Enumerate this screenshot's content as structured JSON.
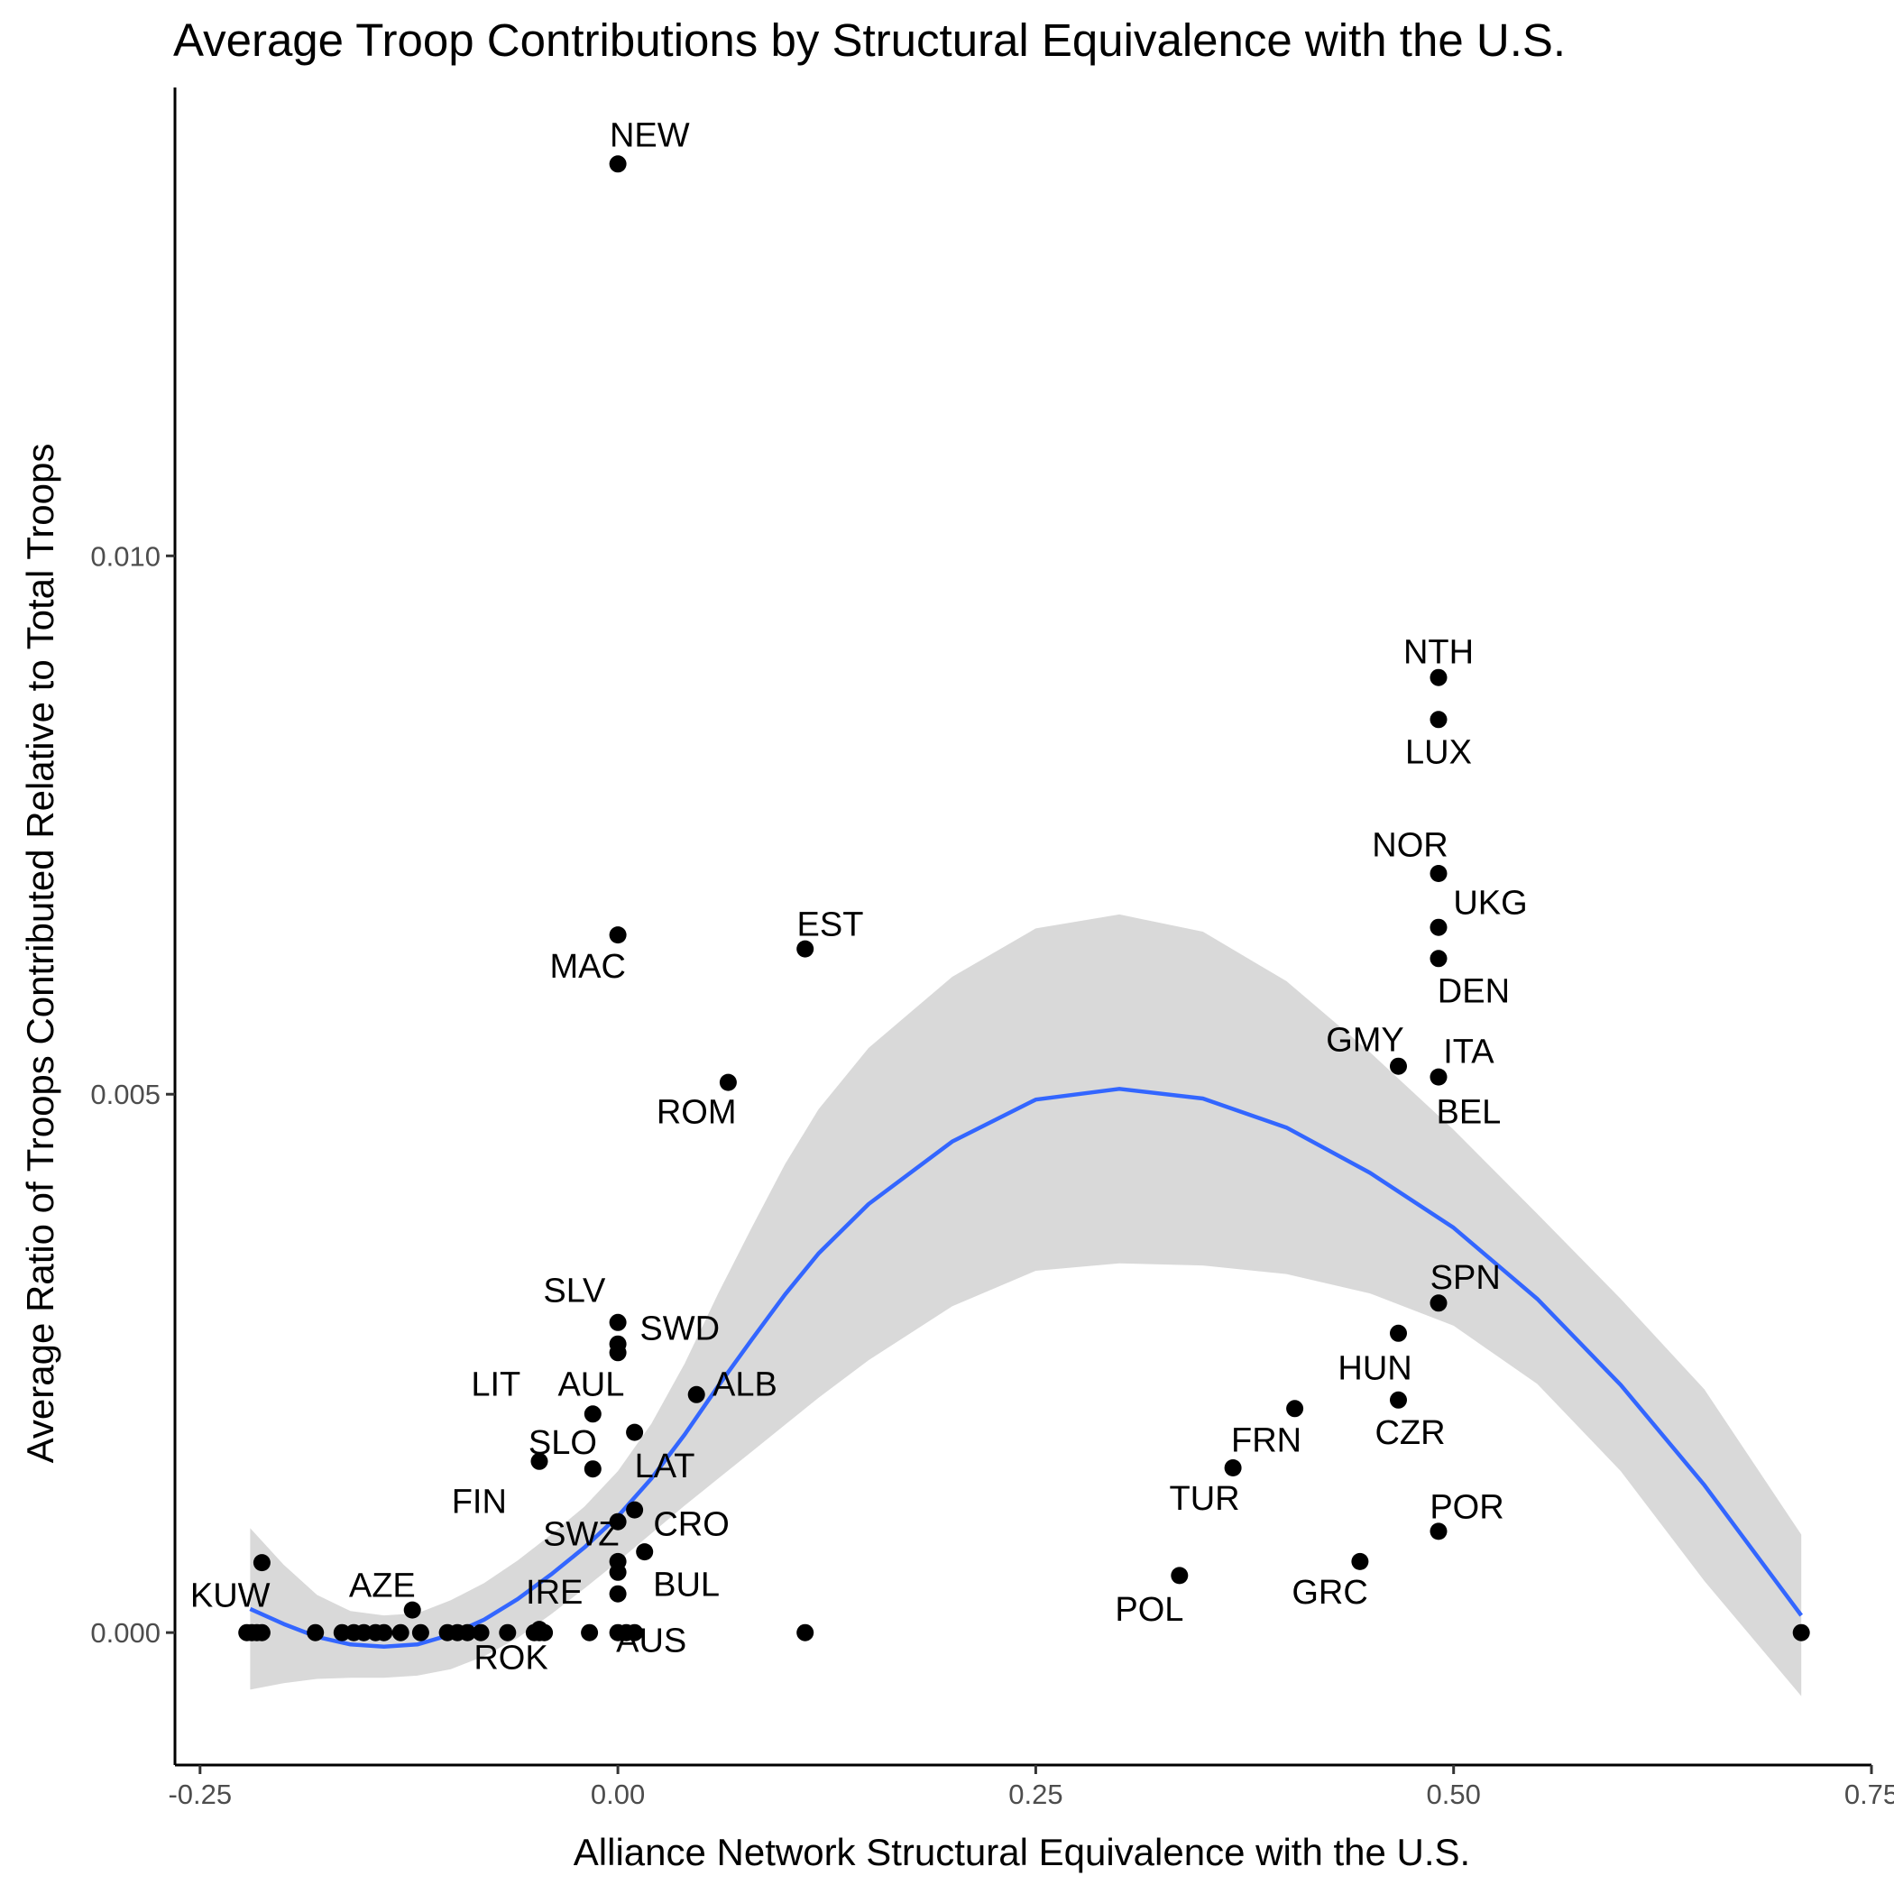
{
  "chart_data": {
    "type": "scatter",
    "title": "Average Troop Contributions by Structural Equivalence with the U.S.",
    "xlabel": "Alliance Network Structural Equivalence with the U.S.",
    "ylabel": "Average Ratio of Troops Contributed Relative to Total Troops",
    "xlim": [
      -0.265,
      0.75
    ],
    "ylim": [
      -0.00123,
      0.01435
    ],
    "x_ticks": [
      -0.25,
      0.0,
      0.25,
      0.5,
      0.75
    ],
    "x_tick_labels": [
      "-0.25",
      "0.00",
      "0.25",
      "0.50",
      "0.75"
    ],
    "y_ticks": [
      0.0,
      0.005,
      0.01
    ],
    "y_tick_labels": [
      "0.000",
      "0.005",
      "0.010"
    ],
    "grid": false,
    "legend": "none",
    "colors": {
      "points": "#000000",
      "smooth_line": "#3366ff",
      "confidence_band": "#d9d9d9",
      "axis": "#000000",
      "tick_label": "#4d4d4d"
    },
    "points": [
      {
        "x": 0.0,
        "y": 0.01364
      },
      {
        "x": 0.491,
        "y": 0.00887
      },
      {
        "x": 0.491,
        "y": 0.00848
      },
      {
        "x": 0.491,
        "y": 0.00705
      },
      {
        "x": 0.491,
        "y": 0.00655
      },
      {
        "x": 0.0,
        "y": 0.00648
      },
      {
        "x": 0.112,
        "y": 0.00635
      },
      {
        "x": 0.491,
        "y": 0.00626
      },
      {
        "x": 0.467,
        "y": 0.00526
      },
      {
        "x": 0.491,
        "y": 0.00516
      },
      {
        "x": 0.066,
        "y": 0.00511
      },
      {
        "x": 0.491,
        "y": 0.00306
      },
      {
        "x": 0.0,
        "y": 0.00288
      },
      {
        "x": 0.467,
        "y": 0.00278
      },
      {
        "x": 0.0,
        "y": 0.00268
      },
      {
        "x": 0.0,
        "y": 0.0026
      },
      {
        "x": 0.047,
        "y": 0.00221
      },
      {
        "x": 0.467,
        "y": 0.00216
      },
      {
        "x": -0.015,
        "y": 0.00203
      },
      {
        "x": 0.405,
        "y": 0.00208
      },
      {
        "x": 0.01,
        "y": 0.00186
      },
      {
        "x": -0.047,
        "y": 0.00159
      },
      {
        "x": -0.015,
        "y": 0.00152
      },
      {
        "x": 0.368,
        "y": 0.00153
      },
      {
        "x": 0.01,
        "y": 0.00114
      },
      {
        "x": 0.0,
        "y": 0.00103
      },
      {
        "x": 0.491,
        "y": 0.00094
      },
      {
        "x": 0.016,
        "y": 0.00075
      },
      {
        "x": 0.0,
        "y": 0.00066
      },
      {
        "x": -0.213,
        "y": 0.00065
      },
      {
        "x": 0.444,
        "y": 0.00066
      },
      {
        "x": 0.0,
        "y": 0.00056
      },
      {
        "x": 0.336,
        "y": 0.00053
      },
      {
        "x": 0.0,
        "y": 0.00036
      },
      {
        "x": -0.123,
        "y": 0.00021
      },
      {
        "x": -0.047,
        "y": 3e-05
      },
      {
        "x": -0.222,
        "y": 0.0
      },
      {
        "x": -0.219,
        "y": 0.0
      },
      {
        "x": -0.216,
        "y": 0.0
      },
      {
        "x": -0.213,
        "y": 0.0
      },
      {
        "x": -0.181,
        "y": 0.0
      },
      {
        "x": -0.165,
        "y": 0.0
      },
      {
        "x": -0.158,
        "y": 0.0
      },
      {
        "x": -0.152,
        "y": 0.0
      },
      {
        "x": -0.145,
        "y": 0.0
      },
      {
        "x": -0.14,
        "y": 0.0
      },
      {
        "x": -0.13,
        "y": 0.0
      },
      {
        "x": -0.118,
        "y": 0.0
      },
      {
        "x": -0.102,
        "y": 0.0
      },
      {
        "x": -0.096,
        "y": 0.0
      },
      {
        "x": -0.09,
        "y": 0.0
      },
      {
        "x": -0.082,
        "y": 0.0
      },
      {
        "x": -0.066,
        "y": 0.0
      },
      {
        "x": -0.05,
        "y": 0.0
      },
      {
        "x": -0.047,
        "y": 0.0
      },
      {
        "x": -0.044,
        "y": 0.0
      },
      {
        "x": -0.017,
        "y": 0.0
      },
      {
        "x": 0.0,
        "y": 0.0
      },
      {
        "x": 0.005,
        "y": 0.0
      },
      {
        "x": 0.01,
        "y": 0.0
      },
      {
        "x": 0.112,
        "y": 0.0
      },
      {
        "x": 0.708,
        "y": 0.0
      }
    ],
    "labels": [
      {
        "text": "NEW",
        "x": 0.019,
        "y": 0.01391
      },
      {
        "text": "NTH",
        "x": 0.491,
        "y": 0.00911
      },
      {
        "text": "LUX",
        "x": 0.491,
        "y": 0.00818
      },
      {
        "text": "NOR",
        "x": 0.474,
        "y": 0.00732
      },
      {
        "text": "UKG",
        "x": 0.522,
        "y": 0.00678
      },
      {
        "text": "MAC",
        "x": -0.018,
        "y": 0.00619
      },
      {
        "text": "EST",
        "x": 0.127,
        "y": 0.00658
      },
      {
        "text": "DEN",
        "x": 0.512,
        "y": 0.00596
      },
      {
        "text": "GMY",
        "x": 0.447,
        "y": 0.00551
      },
      {
        "text": "ITA",
        "x": 0.509,
        "y": 0.0054
      },
      {
        "text": "ROM",
        "x": 0.047,
        "y": 0.00484
      },
      {
        "text": "BEL",
        "x": 0.509,
        "y": 0.00484
      },
      {
        "text": "SLV",
        "x": -0.026,
        "y": 0.00318
      },
      {
        "text": "SPN",
        "x": 0.507,
        "y": 0.0033
      },
      {
        "text": "SWD",
        "x": 0.037,
        "y": 0.00283
      },
      {
        "text": "LIT",
        "x": -0.073,
        "y": 0.00231
      },
      {
        "text": "AUL",
        "x": -0.016,
        "y": 0.00231
      },
      {
        "text": "ALB",
        "x": 0.076,
        "y": 0.00231
      },
      {
        "text": "HUN",
        "x": 0.453,
        "y": 0.00246
      },
      {
        "text": "CZR",
        "x": 0.474,
        "y": 0.00186
      },
      {
        "text": "SLO",
        "x": -0.033,
        "y": 0.00177
      },
      {
        "text": "FRN",
        "x": 0.388,
        "y": 0.00179
      },
      {
        "text": "LAT",
        "x": 0.028,
        "y": 0.00155
      },
      {
        "text": "FIN",
        "x": -0.083,
        "y": 0.00122
      },
      {
        "text": "TUR",
        "x": 0.351,
        "y": 0.00125
      },
      {
        "text": "POR",
        "x": 0.508,
        "y": 0.00117
      },
      {
        "text": "SWZ",
        "x": -0.022,
        "y": 0.00092
      },
      {
        "text": "CRO",
        "x": 0.044,
        "y": 0.00101
      },
      {
        "text": "AZE",
        "x": -0.141,
        "y": 0.00044
      },
      {
        "text": "BUL",
        "x": 0.041,
        "y": 0.00045
      },
      {
        "text": "IRE",
        "x": -0.038,
        "y": 0.00038
      },
      {
        "text": "KUW",
        "x": -0.232,
        "y": 0.00035
      },
      {
        "text": "GRC",
        "x": 0.426,
        "y": 0.00038
      },
      {
        "text": "POL",
        "x": 0.318,
        "y": 0.00022
      },
      {
        "text": "AUS",
        "x": 0.02,
        "y": -7e-05
      },
      {
        "text": "ROK",
        "x": -0.064,
        "y": -0.00023
      }
    ],
    "smooth": {
      "x": [
        -0.22,
        -0.2,
        -0.18,
        -0.16,
        -0.14,
        -0.12,
        -0.1,
        -0.08,
        -0.06,
        -0.04,
        -0.02,
        0.0,
        0.02,
        0.04,
        0.06,
        0.08,
        0.1,
        0.12,
        0.15,
        0.2,
        0.25,
        0.3,
        0.35,
        0.4,
        0.45,
        0.5,
        0.55,
        0.6,
        0.65,
        0.708
      ],
      "y": [
        0.00022,
        8e-05,
        -4e-05,
        -0.00011,
        -0.00013,
        -0.00011,
        -2e-05,
        0.00012,
        0.00031,
        0.00054,
        0.00079,
        0.00108,
        0.00143,
        0.00184,
        0.00229,
        0.00272,
        0.00314,
        0.00352,
        0.00398,
        0.00456,
        0.00495,
        0.00505,
        0.00496,
        0.00469,
        0.00427,
        0.00376,
        0.0031,
        0.0023,
        0.00137,
        0.00016
      ],
      "lower": [
        -0.00053,
        -0.00047,
        -0.00043,
        -0.00042,
        -0.00042,
        -0.0004,
        -0.00034,
        -0.00022,
        -5e-05,
        0.00017,
        0.00041,
        0.00066,
        0.00092,
        0.00118,
        0.00143,
        0.00168,
        0.00193,
        0.00218,
        0.00253,
        0.00303,
        0.00336,
        0.00343,
        0.00341,
        0.00333,
        0.00315,
        0.00285,
        0.00231,
        0.0015,
        0.00048,
        -0.00059
      ],
      "upper": [
        0.00097,
        0.00063,
        0.00035,
        0.0002,
        0.00016,
        0.00018,
        0.0003,
        0.00046,
        0.00067,
        0.00091,
        0.00117,
        0.0015,
        0.00194,
        0.0025,
        0.00315,
        0.00376,
        0.00435,
        0.00486,
        0.00543,
        0.00609,
        0.00654,
        0.00667,
        0.00651,
        0.00605,
        0.00539,
        0.00467,
        0.00389,
        0.0031,
        0.00226,
        0.00091
      ]
    }
  }
}
